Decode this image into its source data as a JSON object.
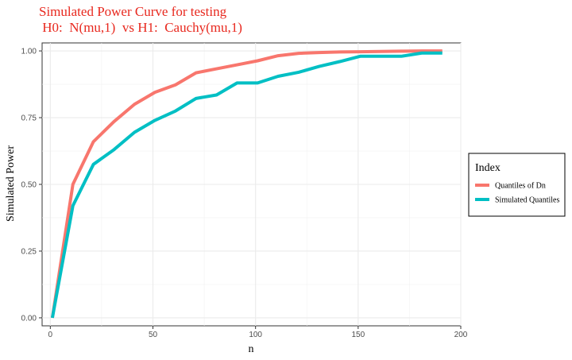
{
  "chart_data": {
    "type": "line",
    "title_line1": "Simulated Power Curve for testing",
    "title_line2": " H0:  N(mu,1)  vs H1:  Cauchy(mu,1)",
    "xlabel": "n",
    "ylabel": "Simulated Power",
    "xlim": [
      -4,
      200
    ],
    "ylim": [
      -0.03,
      1.03
    ],
    "x_ticks": [
      0,
      50,
      100,
      150,
      200
    ],
    "x_tick_labels": [
      "0",
      "50",
      "100",
      "150",
      "200"
    ],
    "y_ticks": [
      0,
      0.25,
      0.5,
      0.75,
      1.0
    ],
    "y_tick_labels": [
      "0.00",
      "0.25",
      "0.50",
      "0.75",
      "1.00"
    ],
    "grid": true,
    "legend_position": "right",
    "legend_title": "Index",
    "x": [
      1,
      11,
      21,
      31,
      41,
      51,
      61,
      71,
      81,
      91,
      101,
      111,
      121,
      131,
      141,
      151,
      161,
      171,
      181,
      191
    ],
    "series": [
      {
        "name": "Quantiles of Dn",
        "color": "#f8766d",
        "values": [
          0.0,
          0.5,
          0.66,
          0.735,
          0.8,
          0.845,
          0.873,
          0.918,
          0.933,
          0.948,
          0.963,
          0.982,
          0.991,
          0.994,
          0.996,
          0.997,
          0.998,
          0.999,
          1.0,
          1.0
        ]
      },
      {
        "name": "Simulated Quantiles",
        "color": "#00bfc4",
        "values": [
          0.0,
          0.42,
          0.575,
          0.63,
          0.695,
          0.74,
          0.775,
          0.822,
          0.835,
          0.88,
          0.88,
          0.905,
          0.92,
          0.942,
          0.96,
          0.98,
          0.98,
          0.98,
          0.992,
          0.992
        ]
      }
    ]
  }
}
